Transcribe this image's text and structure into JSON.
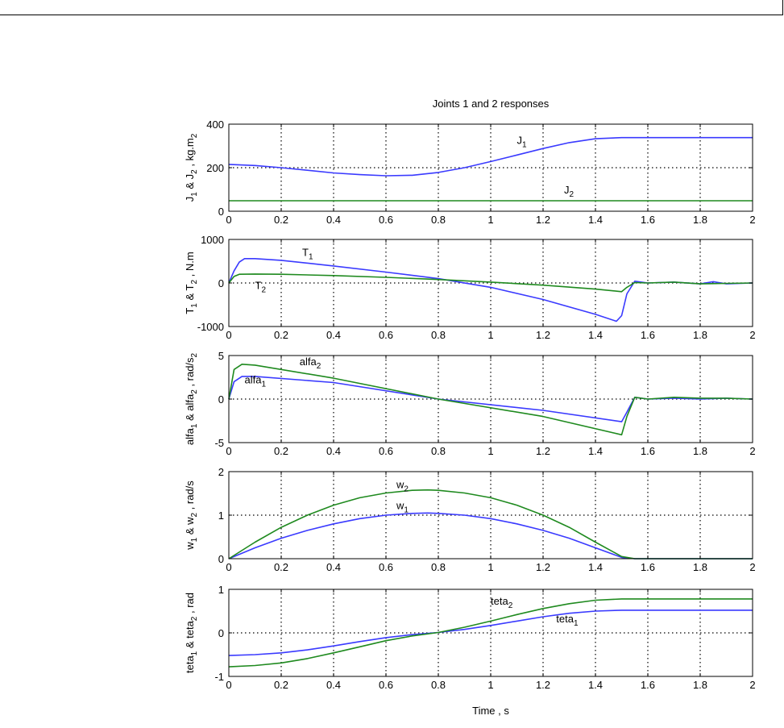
{
  "figure": {
    "title": "Joints 1 and 2 responses",
    "xlabel": "Time , s"
  },
  "colors": {
    "series1": "#3a3aff",
    "series2": "#1f8a1f",
    "axes": "#000000"
  },
  "chart_data": [
    {
      "type": "line",
      "ylabel": [
        "J",
        "1",
        " & J",
        "2",
        " , kg.m",
        "2"
      ],
      "xlim": [
        0,
        2
      ],
      "ylim": [
        0,
        400
      ],
      "xticks": [
        0,
        0.2,
        0.4,
        0.6,
        0.8,
        1,
        1.2,
        1.4,
        1.6,
        1.8,
        2
      ],
      "yticks": [
        0,
        200,
        400
      ],
      "grid": true,
      "series": [
        {
          "name": "J1",
          "x": [
            0,
            0.1,
            0.2,
            0.3,
            0.4,
            0.5,
            0.6,
            0.7,
            0.8,
            0.9,
            1.0,
            1.1,
            1.2,
            1.3,
            1.4,
            1.5,
            1.6,
            1.8,
            2.0
          ],
          "y": [
            215,
            210,
            200,
            188,
            176,
            168,
            163,
            165,
            178,
            200,
            228,
            258,
            288,
            315,
            333,
            338,
            338,
            338,
            338
          ]
        },
        {
          "name": "J2",
          "x": [
            0,
            2
          ],
          "y": [
            48,
            48
          ]
        }
      ],
      "annotations": [
        {
          "base": "J",
          "sub": "1",
          "at": [
            1.1,
            310
          ]
        },
        {
          "base": "J",
          "sub": "2",
          "at": [
            1.28,
            82
          ]
        }
      ]
    },
    {
      "type": "line",
      "ylabel": [
        "T",
        "1",
        " & T",
        "2",
        " , N.m"
      ],
      "xlim": [
        0,
        2
      ],
      "ylim": [
        -1000,
        1000
      ],
      "xticks": [
        0,
        0.2,
        0.4,
        0.6,
        0.8,
        1,
        1.2,
        1.4,
        1.6,
        1.8,
        2
      ],
      "yticks": [
        -1000,
        0,
        1000
      ],
      "grid": true,
      "series": [
        {
          "name": "T1",
          "x": [
            0,
            0.02,
            0.04,
            0.06,
            0.1,
            0.2,
            0.4,
            0.6,
            0.8,
            1.0,
            1.2,
            1.4,
            1.48,
            1.5,
            1.52,
            1.55,
            1.6,
            1.7,
            1.8,
            1.85,
            1.9,
            2.0
          ],
          "y": [
            0,
            280,
            480,
            560,
            560,
            520,
            390,
            250,
            100,
            -100,
            -380,
            -720,
            -880,
            -750,
            -250,
            40,
            0,
            20,
            -20,
            30,
            -20,
            0
          ]
        },
        {
          "name": "T2",
          "x": [
            0,
            0.02,
            0.04,
            0.1,
            0.2,
            0.4,
            0.6,
            0.8,
            1.0,
            1.2,
            1.4,
            1.5,
            1.52,
            1.55,
            1.6,
            1.7,
            1.8,
            1.9,
            2.0
          ],
          "y": [
            0,
            150,
            200,
            205,
            200,
            170,
            130,
            80,
            20,
            -50,
            -140,
            -200,
            -100,
            10,
            0,
            20,
            -20,
            -10,
            0
          ]
        }
      ],
      "annotations": [
        {
          "base": "T",
          "sub": "1",
          "at": [
            0.28,
            620
          ]
        },
        {
          "base": "T",
          "sub": "2",
          "at": [
            0.1,
            -140
          ]
        }
      ]
    },
    {
      "type": "line",
      "ylabel": [
        "alfa",
        "1",
        " & alfa",
        "2",
        " , rad/s",
        "2"
      ],
      "xlim": [
        0,
        2
      ],
      "ylim": [
        -5,
        5
      ],
      "xticks": [
        0,
        0.2,
        0.4,
        0.6,
        0.8,
        1,
        1.2,
        1.4,
        1.6,
        1.8,
        2
      ],
      "yticks": [
        -5,
        0,
        5
      ],
      "grid": true,
      "series": [
        {
          "name": "alfa1",
          "x": [
            0,
            0.02,
            0.05,
            0.1,
            0.4,
            0.8,
            1.2,
            1.5,
            1.52,
            1.55,
            1.6,
            1.7,
            1.8,
            1.9,
            2.0
          ],
          "y": [
            0,
            2.0,
            2.6,
            2.6,
            1.9,
            0.0,
            -1.3,
            -2.6,
            -1.5,
            0.2,
            0.0,
            0.1,
            0.0,
            0.1,
            0.0
          ]
        },
        {
          "name": "alfa2",
          "x": [
            0,
            0.02,
            0.05,
            0.1,
            0.4,
            0.8,
            1.2,
            1.5,
            1.52,
            1.55,
            1.6,
            1.7,
            1.8,
            1.9,
            2.0
          ],
          "y": [
            0,
            3.4,
            4.0,
            3.9,
            2.4,
            0.0,
            -2.0,
            -4.1,
            -2.0,
            0.2,
            0.0,
            0.2,
            0.1,
            0.1,
            0.0
          ]
        }
      ],
      "annotations": [
        {
          "base": "alfa",
          "sub": "2",
          "at": [
            0.27,
            3.9
          ]
        },
        {
          "base": "alfa",
          "sub": "1",
          "at": [
            0.06,
            1.8
          ]
        }
      ]
    },
    {
      "type": "line",
      "ylabel": [
        "w",
        "1",
        " & w",
        "2",
        " , rad/s"
      ],
      "xlim": [
        0,
        2
      ],
      "ylim": [
        0,
        2
      ],
      "xticks": [
        0,
        0.2,
        0.4,
        0.6,
        0.8,
        1,
        1.2,
        1.4,
        1.6,
        1.8,
        2
      ],
      "yticks": [
        0,
        1,
        2
      ],
      "grid": true,
      "series": [
        {
          "name": "w1",
          "x": [
            0,
            0.1,
            0.2,
            0.3,
            0.4,
            0.5,
            0.6,
            0.7,
            0.76,
            0.8,
            0.9,
            1.0,
            1.1,
            1.2,
            1.3,
            1.4,
            1.5,
            1.55,
            1.6,
            2.0
          ],
          "y": [
            0,
            0.25,
            0.47,
            0.65,
            0.8,
            0.92,
            1.0,
            1.04,
            1.05,
            1.04,
            1.0,
            0.92,
            0.8,
            0.65,
            0.47,
            0.25,
            0.03,
            0,
            0,
            0
          ]
        },
        {
          "name": "w2",
          "x": [
            0,
            0.1,
            0.2,
            0.3,
            0.4,
            0.5,
            0.6,
            0.7,
            0.76,
            0.8,
            0.9,
            1.0,
            1.1,
            1.2,
            1.3,
            1.4,
            1.5,
            1.55,
            1.6,
            2.0
          ],
          "y": [
            0,
            0.38,
            0.72,
            1.0,
            1.23,
            1.4,
            1.51,
            1.57,
            1.58,
            1.57,
            1.51,
            1.4,
            1.23,
            1.0,
            0.72,
            0.38,
            0.05,
            0,
            0,
            0
          ]
        }
      ],
      "annotations": [
        {
          "base": "w",
          "sub": "2",
          "at": [
            0.64,
            1.62
          ]
        },
        {
          "base": "w",
          "sub": "1",
          "at": [
            0.64,
            1.14
          ]
        }
      ]
    },
    {
      "type": "line",
      "ylabel": [
        "teta",
        "1",
        " & teta",
        "2",
        " , rad"
      ],
      "xlim": [
        0,
        2
      ],
      "ylim": [
        -1,
        1
      ],
      "xticks": [
        0,
        0.2,
        0.4,
        0.6,
        0.8,
        1,
        1.2,
        1.4,
        1.6,
        1.8,
        2
      ],
      "yticks": [
        -1,
        0,
        1
      ],
      "grid": true,
      "series": [
        {
          "name": "teta1",
          "x": [
            0,
            0.1,
            0.2,
            0.3,
            0.4,
            0.5,
            0.6,
            0.7,
            0.8,
            0.9,
            1.0,
            1.1,
            1.2,
            1.3,
            1.4,
            1.5,
            1.6,
            2.0
          ],
          "y": [
            -0.52,
            -0.5,
            -0.46,
            -0.39,
            -0.3,
            -0.2,
            -0.11,
            -0.04,
            0.01,
            0.08,
            0.17,
            0.27,
            0.37,
            0.45,
            0.5,
            0.52,
            0.52,
            0.52
          ]
        },
        {
          "name": "teta2",
          "x": [
            0,
            0.1,
            0.2,
            0.3,
            0.4,
            0.5,
            0.6,
            0.7,
            0.8,
            0.9,
            1.0,
            1.1,
            1.2,
            1.3,
            1.4,
            1.5,
            1.6,
            2.0
          ],
          "y": [
            -0.78,
            -0.75,
            -0.69,
            -0.59,
            -0.46,
            -0.32,
            -0.18,
            -0.07,
            0.01,
            0.13,
            0.27,
            0.42,
            0.56,
            0.67,
            0.75,
            0.78,
            0.78,
            0.78
          ]
        }
      ],
      "annotations": [
        {
          "base": "teta",
          "sub": "2",
          "at": [
            1.0,
            0.65
          ]
        },
        {
          "base": "teta",
          "sub": "1",
          "at": [
            1.25,
            0.24
          ]
        }
      ]
    }
  ]
}
